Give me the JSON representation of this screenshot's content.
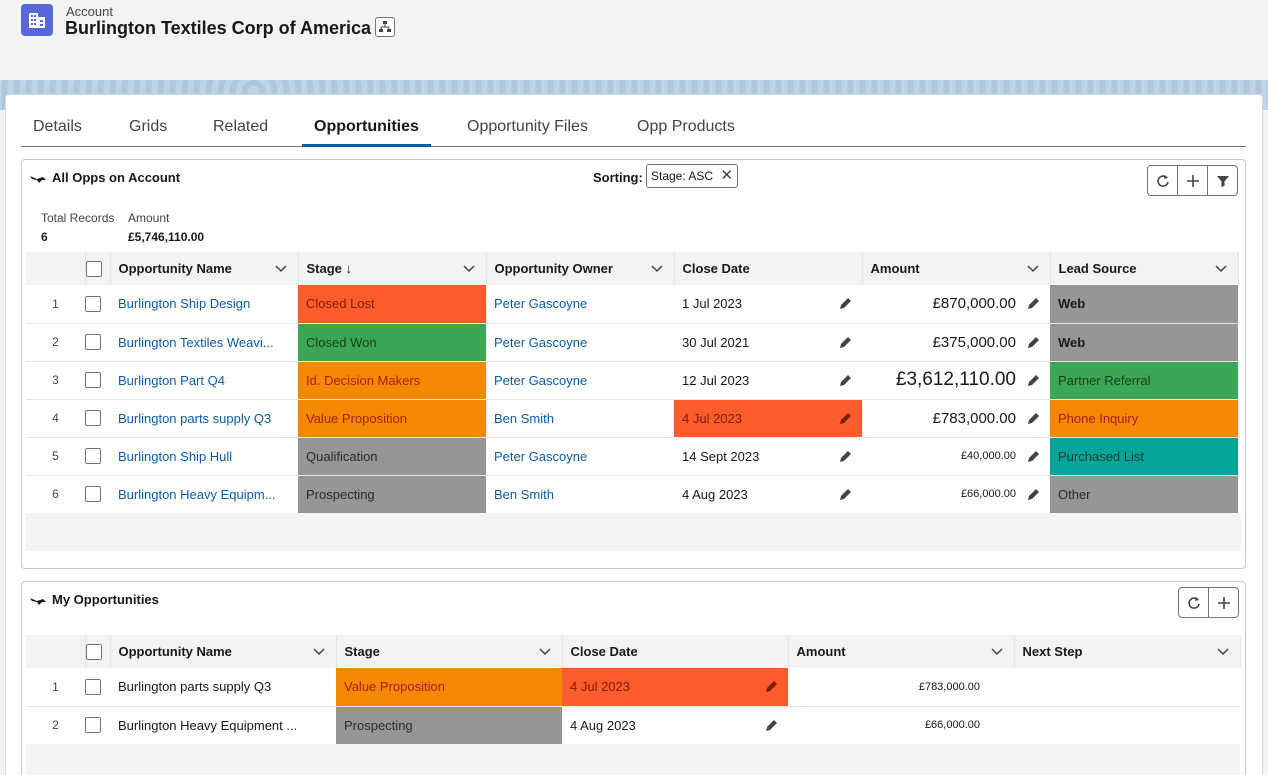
{
  "header": {
    "object_label": "Account",
    "record_name": "Burlington Textiles Corp of America"
  },
  "tabs": [
    {
      "label": "Details"
    },
    {
      "label": "Grids"
    },
    {
      "label": "Related"
    },
    {
      "label": "Opportunities",
      "active": true
    },
    {
      "label": "Opportunity Files"
    },
    {
      "label": "Opp Products"
    }
  ],
  "grid1": {
    "title": "All Opps on Account",
    "sorting_label": "Sorting:",
    "sort_pill": "Stage: ASC",
    "stats": {
      "total_records_label": "Total Records",
      "total_records_value": "6",
      "amount_label": "Amount",
      "amount_value": "£5,746,110.00"
    },
    "columns": [
      "Opportunity Name",
      "Stage ↓",
      "Opportunity Owner",
      "Close Date",
      "Amount",
      "Lead Source"
    ],
    "rows": [
      {
        "num": "1",
        "name": "Burlington Ship Design",
        "stage": "Closed Lost",
        "owner": "Peter Gascoyne",
        "close": "1 Jul 2023",
        "amount": "£870,000.00",
        "lead": "Web"
      },
      {
        "num": "2",
        "name": "Burlington Textiles Weavi...",
        "stage": "Closed Won",
        "owner": "Peter Gascoyne",
        "close": "30 Jul 2021",
        "amount": "£375,000.00",
        "lead": "Web"
      },
      {
        "num": "3",
        "name": "Burlington Part Q4",
        "stage": "Id. Decision Makers",
        "owner": "Peter Gascoyne",
        "close": "12 Jul 2023",
        "amount": "£3,612,110.00",
        "lead": "Partner Referral"
      },
      {
        "num": "4",
        "name": "Burlington parts supply Q3",
        "stage": "Value Proposition",
        "owner": "Ben Smith",
        "close": "4 Jul 2023",
        "amount": "£783,000.00",
        "lead": "Phone Inquiry"
      },
      {
        "num": "5",
        "name": "Burlington Ship Hull",
        "stage": "Qualification",
        "owner": "Peter Gascoyne",
        "close": "14 Sept 2023",
        "amount": "£40,000.00",
        "lead": "Purchased List"
      },
      {
        "num": "6",
        "name": "Burlington Heavy Equipm...",
        "stage": "Prospecting",
        "owner": "Ben Smith",
        "close": "4 Aug 2023",
        "amount": "£66,000.00",
        "lead": "Other"
      }
    ]
  },
  "grid2": {
    "title": "My Opportunities",
    "columns": [
      "Opportunity Name",
      "Stage",
      "Close Date",
      "Amount",
      "Next Step"
    ],
    "rows": [
      {
        "num": "1",
        "name": "Burlington parts supply Q3",
        "stage": "Value Proposition",
        "close": "4 Jul 2023",
        "amount": "£783,000.00",
        "next": ""
      },
      {
        "num": "2",
        "name": "Burlington Heavy Equipment ...",
        "stage": "Prospecting",
        "close": "4 Aug 2023",
        "amount": "£66,000.00",
        "next": ""
      }
    ]
  },
  "colors": {
    "closed_lost": "#fe5c2d",
    "closed_won": "#3ba755",
    "orange": "#f38900",
    "gray": "#969696",
    "teal": "#06a59a",
    "brand": "#0b5cab"
  }
}
